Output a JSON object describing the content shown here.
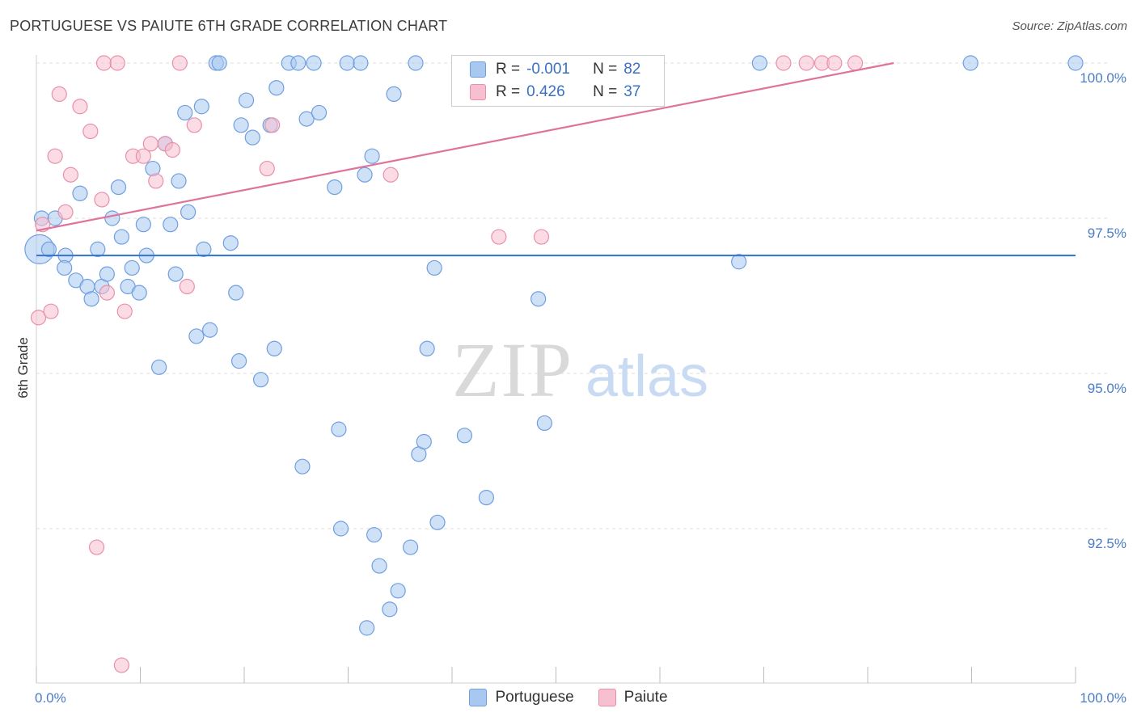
{
  "title": "PORTUGUESE VS PAIUTE 6TH GRADE CORRELATION CHART",
  "source": "Source: ZipAtlas.com",
  "watermark": {
    "zip": "ZIP",
    "atlas": "atlas"
  },
  "legend": {
    "rows": [
      {
        "r_label": "R =",
        "r_value": "-0.001",
        "n_label": "N =",
        "n_value": "82"
      },
      {
        "r_label": "R =",
        "r_value": "0.426",
        "n_label": "N =",
        "n_value": "37"
      }
    ]
  },
  "chart_data": {
    "type": "scatter",
    "title": "PORTUGUESE VS PAIUTE 6TH GRADE CORRELATION CHART",
    "xlabel": "",
    "ylabel": "6th Grade",
    "xlim": [
      0,
      100
    ],
    "ylim": [
      90.0,
      100.5
    ],
    "x_tick_labels": [
      "0.0%",
      "100.0%"
    ],
    "y_ticks": [
      92.5,
      95.0,
      97.5,
      100.0
    ],
    "y_tick_labels": [
      "92.5%",
      "95.0%",
      "97.5%",
      "100.0%"
    ],
    "grid": true,
    "legend_position": "bottom",
    "series": [
      {
        "name": "Portuguese",
        "color": "#a8c8f0",
        "stroke": "#6f9fe0",
        "line_color": "#3a78d4",
        "trend": {
          "x": [
            0,
            100
          ],
          "y": [
            96.9,
            96.9
          ]
        },
        "points": [
          [
            0.3,
            97.0
          ],
          [
            0.5,
            97.5
          ],
          [
            1.2,
            97.0
          ],
          [
            1.8,
            97.5
          ],
          [
            2.8,
            96.9
          ],
          [
            2.7,
            96.7
          ],
          [
            3.8,
            96.5
          ],
          [
            4.2,
            97.9
          ],
          [
            4.9,
            96.4
          ],
          [
            5.3,
            96.2
          ],
          [
            5.9,
            97.0
          ],
          [
            6.3,
            96.4
          ],
          [
            6.8,
            96.6
          ],
          [
            7.3,
            97.5
          ],
          [
            7.9,
            98.0
          ],
          [
            8.2,
            97.2
          ],
          [
            8.8,
            96.4
          ],
          [
            9.2,
            96.7
          ],
          [
            9.9,
            96.3
          ],
          [
            10.3,
            97.4
          ],
          [
            10.6,
            96.9
          ],
          [
            11.2,
            98.3
          ],
          [
            11.8,
            95.1
          ],
          [
            12.4,
            98.7
          ],
          [
            12.9,
            97.4
          ],
          [
            13.4,
            96.6
          ],
          [
            13.7,
            98.1
          ],
          [
            14.3,
            99.2
          ],
          [
            14.6,
            97.6
          ],
          [
            15.4,
            95.6
          ],
          [
            15.9,
            99.3
          ],
          [
            16.1,
            97.0
          ],
          [
            16.7,
            95.7
          ],
          [
            17.3,
            100.0
          ],
          [
            17.6,
            100.0
          ],
          [
            18.7,
            97.1
          ],
          [
            19.2,
            96.3
          ],
          [
            19.5,
            95.2
          ],
          [
            19.7,
            99.0
          ],
          [
            20.2,
            99.4
          ],
          [
            20.8,
            98.8
          ],
          [
            21.6,
            94.9
          ],
          [
            22.5,
            99.0
          ],
          [
            22.9,
            95.4
          ],
          [
            23.1,
            99.6
          ],
          [
            24.3,
            100.0
          ],
          [
            25.2,
            100.0
          ],
          [
            25.6,
            93.5
          ],
          [
            26.0,
            99.1
          ],
          [
            26.7,
            100.0
          ],
          [
            27.2,
            99.2
          ],
          [
            28.7,
            98.0
          ],
          [
            29.1,
            94.1
          ],
          [
            29.3,
            92.5
          ],
          [
            29.9,
            100.0
          ],
          [
            31.2,
            100.0
          ],
          [
            31.6,
            98.2
          ],
          [
            31.8,
            90.9
          ],
          [
            32.3,
            98.5
          ],
          [
            32.5,
            92.4
          ],
          [
            33.0,
            91.9
          ],
          [
            34.0,
            91.2
          ],
          [
            34.4,
            99.5
          ],
          [
            34.8,
            91.5
          ],
          [
            36.0,
            92.2
          ],
          [
            36.5,
            100.0
          ],
          [
            36.8,
            93.7
          ],
          [
            37.3,
            93.9
          ],
          [
            37.6,
            95.4
          ],
          [
            38.3,
            96.7
          ],
          [
            38.6,
            92.6
          ],
          [
            41.2,
            94.0
          ],
          [
            43.3,
            93.0
          ],
          [
            46.2,
            100.0
          ],
          [
            48.2,
            100.0
          ],
          [
            48.3,
            96.2
          ],
          [
            48.9,
            94.2
          ],
          [
            50.6,
            100.0
          ],
          [
            69.6,
            100.0
          ],
          [
            67.6,
            96.8
          ],
          [
            89.9,
            100.0
          ],
          [
            100.0,
            100.0
          ]
        ]
      },
      {
        "name": "Paiute",
        "color": "#f7c0d0",
        "stroke": "#e890aa",
        "line_color": "#e0739a",
        "trend": {
          "x": [
            0,
            82.5
          ],
          "y": [
            97.3,
            100.0
          ]
        },
        "points": [
          [
            0.2,
            95.9
          ],
          [
            0.6,
            97.4
          ],
          [
            1.4,
            96.0
          ],
          [
            1.8,
            98.5
          ],
          [
            2.2,
            99.5
          ],
          [
            2.8,
            97.6
          ],
          [
            3.3,
            98.2
          ],
          [
            4.2,
            99.3
          ],
          [
            5.2,
            98.9
          ],
          [
            5.8,
            92.2
          ],
          [
            6.3,
            97.8
          ],
          [
            6.5,
            100.0
          ],
          [
            6.8,
            96.3
          ],
          [
            7.8,
            100.0
          ],
          [
            8.2,
            90.3
          ],
          [
            8.5,
            96.0
          ],
          [
            9.3,
            98.5
          ],
          [
            10.3,
            98.5
          ],
          [
            11.0,
            98.7
          ],
          [
            11.5,
            98.1
          ],
          [
            12.4,
            98.7
          ],
          [
            13.1,
            98.6
          ],
          [
            13.8,
            100.0
          ],
          [
            14.5,
            96.4
          ],
          [
            15.2,
            99.0
          ],
          [
            22.2,
            98.3
          ],
          [
            22.7,
            99.0
          ],
          [
            34.1,
            98.2
          ],
          [
            44.5,
            97.2
          ],
          [
            46.1,
            100.0
          ],
          [
            46.9,
            100.0
          ],
          [
            48.6,
            97.2
          ],
          [
            71.9,
            100.0
          ],
          [
            74.1,
            100.0
          ],
          [
            75.6,
            100.0
          ],
          [
            76.8,
            100.0
          ],
          [
            78.8,
            100.0
          ]
        ]
      }
    ]
  }
}
